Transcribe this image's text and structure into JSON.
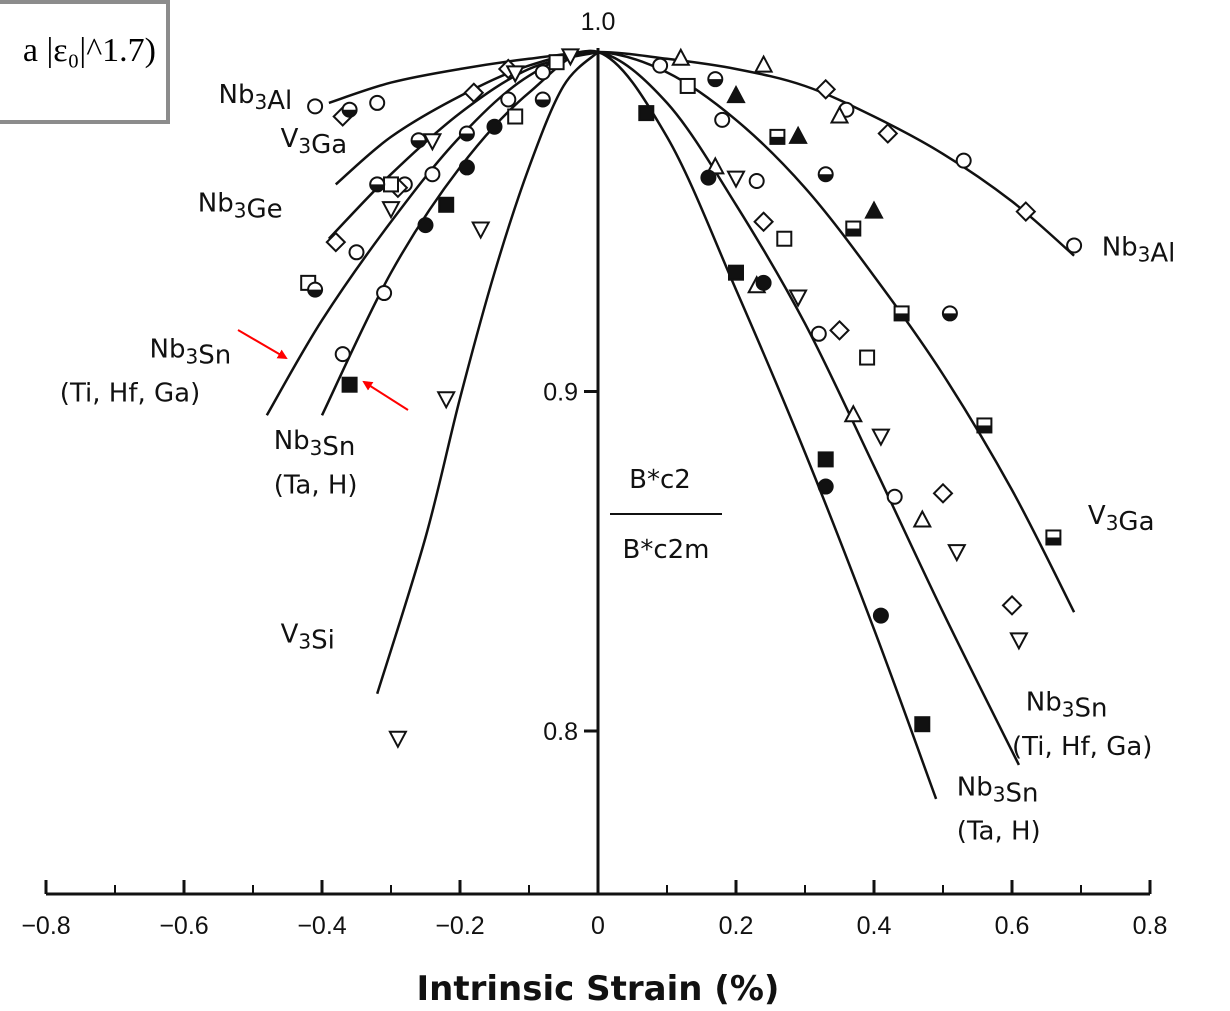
{
  "formula_fragment": "a |ε₀|^1.7)",
  "chart_data": {
    "type": "scatter",
    "xlabel": "Intrinsic Strain (%)",
    "ylabel": "B*c2 / B*c2m",
    "ylabel_num": "B*c2",
    "ylabel_den": "B*c2m",
    "xlim": [
      -0.8,
      0.8
    ],
    "ylim": [
      0.74,
      1.0
    ],
    "x_ticks": [
      -0.8,
      -0.6,
      -0.4,
      -0.2,
      0,
      0.2,
      0.4,
      0.6,
      0.8
    ],
    "x_tick_labels": [
      "−0.8",
      "−0.6",
      "−0.4",
      "−0.2",
      "0",
      "0.2",
      "0.4",
      "0.6",
      "0.8"
    ],
    "y_ticks": [
      0.8,
      0.9,
      1.0
    ],
    "y_tick_labels": [
      "0.8",
      "0.9",
      "1.0"
    ],
    "grid": false,
    "curves": [
      {
        "name": "Nb3Al",
        "x": [
          -0.39,
          -0.3,
          -0.2,
          -0.1,
          0,
          0.1,
          0.2,
          0.3,
          0.4,
          0.5,
          0.6,
          0.69
        ],
        "y": [
          0.985,
          0.991,
          0.995,
          0.998,
          1.0,
          0.998,
          0.995,
          0.99,
          0.981,
          0.97,
          0.956,
          0.94
        ]
      },
      {
        "name": "V3Ga",
        "x": [
          -0.38,
          -0.3,
          -0.2,
          -0.1,
          0,
          0.1,
          0.2,
          0.3,
          0.4,
          0.5,
          0.6,
          0.69
        ],
        "y": [
          0.961,
          0.975,
          0.987,
          0.996,
          1.0,
          0.994,
          0.98,
          0.96,
          0.934,
          0.905,
          0.871,
          0.835
        ]
      },
      {
        "name": "Nb3Ge",
        "x": [
          -0.39,
          -0.3,
          -0.2,
          -0.1,
          0
        ],
        "y": [
          0.945,
          0.964,
          0.982,
          0.995,
          1.0
        ]
      },
      {
        "name": "Nb3Sn (Ti, Hf, Ga)",
        "x": [
          -0.48,
          -0.4,
          -0.3,
          -0.2,
          -0.1,
          0,
          0.1,
          0.2,
          0.3,
          0.4,
          0.5,
          0.61
        ],
        "y": [
          0.893,
          0.921,
          0.95,
          0.975,
          0.993,
          1.0,
          0.985,
          0.955,
          0.92,
          0.878,
          0.835,
          0.79
        ]
      },
      {
        "name": "Nb3Sn (Ta, H)",
        "x": [
          -0.4,
          -0.3,
          -0.2,
          -0.1,
          0,
          0.1,
          0.2,
          0.3,
          0.4,
          0.49
        ],
        "y": [
          0.893,
          0.935,
          0.966,
          0.988,
          1.0,
          0.975,
          0.93,
          0.882,
          0.83,
          0.78
        ]
      },
      {
        "name": "V3Si",
        "x": [
          -0.32,
          -0.25,
          -0.2,
          -0.15,
          -0.1,
          -0.05,
          0
        ],
        "y": [
          0.811,
          0.857,
          0.898,
          0.935,
          0.966,
          0.99,
          1.0
        ]
      }
    ],
    "points": [
      {
        "m": "o",
        "x": -0.41,
        "y": 0.984
      },
      {
        "m": "o",
        "x": -0.32,
        "y": 0.985
      },
      {
        "m": "o",
        "x": -0.24,
        "y": 0.964
      },
      {
        "m": "o",
        "x": -0.28,
        "y": 0.961
      },
      {
        "m": "o",
        "x": -0.35,
        "y": 0.941
      },
      {
        "m": "o",
        "x": -0.13,
        "y": 0.986
      },
      {
        "m": "o",
        "x": -0.08,
        "y": 0.994
      },
      {
        "m": "o",
        "x": 0.09,
        "y": 0.996
      },
      {
        "m": "o",
        "x": 0.18,
        "y": 0.98
      },
      {
        "m": "o",
        "x": 0.36,
        "y": 0.983
      },
      {
        "m": "o",
        "x": 0.53,
        "y": 0.968
      },
      {
        "m": "o",
        "x": 0.69,
        "y": 0.943
      },
      {
        "m": "o",
        "x": 0.23,
        "y": 0.962
      },
      {
        "m": "o",
        "x": 0.32,
        "y": 0.917
      },
      {
        "m": "o",
        "x": 0.43,
        "y": 0.869
      },
      {
        "m": "d",
        "x": -0.37,
        "y": 0.981
      },
      {
        "m": "d",
        "x": -0.18,
        "y": 0.988
      },
      {
        "m": "d",
        "x": -0.13,
        "y": 0.995
      },
      {
        "m": "d",
        "x": 0.33,
        "y": 0.989
      },
      {
        "m": "d",
        "x": 0.42,
        "y": 0.976
      },
      {
        "m": "d",
        "x": 0.62,
        "y": 0.953
      },
      {
        "m": "d",
        "x": -0.38,
        "y": 0.944
      },
      {
        "m": "d",
        "x": -0.29,
        "y": 0.96
      },
      {
        "m": "d",
        "x": 0.24,
        "y": 0.95
      },
      {
        "m": "d",
        "x": 0.35,
        "y": 0.918
      },
      {
        "m": "d",
        "x": 0.5,
        "y": 0.87
      },
      {
        "m": "d",
        "x": 0.6,
        "y": 0.837
      },
      {
        "m": "^",
        "x": 0.24,
        "y": 0.996
      },
      {
        "m": "^",
        "x": 0.35,
        "y": 0.981
      },
      {
        "m": "^",
        "x": 0.12,
        "y": 0.998
      },
      {
        "m": "^",
        "x": 0.23,
        "y": 0.931
      },
      {
        "m": "^",
        "x": 0.37,
        "y": 0.893
      },
      {
        "m": "^",
        "x": 0.47,
        "y": 0.862
      },
      {
        "m": "^",
        "x": 0.17,
        "y": 0.966
      },
      {
        "m": "A",
        "x": 0.2,
        "y": 0.987
      },
      {
        "m": "A",
        "x": 0.29,
        "y": 0.975
      },
      {
        "m": "A",
        "x": 0.4,
        "y": 0.953
      },
      {
        "m": "v",
        "x": -0.04,
        "y": 0.999
      },
      {
        "m": "v",
        "x": -0.12,
        "y": 0.994
      },
      {
        "m": "v",
        "x": -0.24,
        "y": 0.974
      },
      {
        "m": "v",
        "x": -0.3,
        "y": 0.954
      },
      {
        "m": "v",
        "x": -0.17,
        "y": 0.948
      },
      {
        "m": "v",
        "x": -0.22,
        "y": 0.898
      },
      {
        "m": "v",
        "x": -0.29,
        "y": 0.798
      },
      {
        "m": "v",
        "x": 0.2,
        "y": 0.963
      },
      {
        "m": "v",
        "x": 0.29,
        "y": 0.928
      },
      {
        "m": "v",
        "x": 0.41,
        "y": 0.887
      },
      {
        "m": "v",
        "x": 0.52,
        "y": 0.853
      },
      {
        "m": "v",
        "x": 0.61,
        "y": 0.827
      },
      {
        "m": "s",
        "x": -0.42,
        "y": 0.932
      },
      {
        "m": "s",
        "x": -0.3,
        "y": 0.961
      },
      {
        "m": "s",
        "x": -0.12,
        "y": 0.981
      },
      {
        "m": "s",
        "x": -0.06,
        "y": 0.997
      },
      {
        "m": "s",
        "x": 0.13,
        "y": 0.99
      },
      {
        "m": "s",
        "x": 0.27,
        "y": 0.945
      },
      {
        "m": "s",
        "x": 0.39,
        "y": 0.91
      },
      {
        "m": "B",
        "x": 0.26,
        "y": 0.975
      },
      {
        "m": "B",
        "x": 0.37,
        "y": 0.948
      },
      {
        "m": "B",
        "x": 0.44,
        "y": 0.923
      },
      {
        "m": "B",
        "x": 0.56,
        "y": 0.89
      },
      {
        "m": "B",
        "x": 0.66,
        "y": 0.857
      },
      {
        "m": "H",
        "x": -0.36,
        "y": 0.983
      },
      {
        "m": "H",
        "x": -0.26,
        "y": 0.974
      },
      {
        "m": "H",
        "x": -0.19,
        "y": 0.976
      },
      {
        "m": "H",
        "x": -0.32,
        "y": 0.961
      },
      {
        "m": "H",
        "x": -0.41,
        "y": 0.93
      },
      {
        "m": "H",
        "x": -0.08,
        "y": 0.986
      },
      {
        "m": "H",
        "x": 0.17,
        "y": 0.992
      },
      {
        "m": "H",
        "x": 0.33,
        "y": 0.964
      },
      {
        "m": "H",
        "x": 0.51,
        "y": 0.923
      },
      {
        "m": "o",
        "x": -0.37,
        "y": 0.911
      },
      {
        "m": "o",
        "x": -0.31,
        "y": 0.929
      },
      {
        "m": "o",
        "x": -0.25,
        "y": 0.949
      },
      {
        "m": "o",
        "x": -0.19,
        "y": 0.966
      },
      {
        "m": "o",
        "x": -0.15,
        "y": 0.978
      },
      {
        "m": "o",
        "x": 0.16,
        "y": 0.963
      },
      {
        "m": "o",
        "x": 0.24,
        "y": 0.932
      },
      {
        "m": "o",
        "x": 0.33,
        "y": 0.872
      },
      {
        "m": "o",
        "x": 0.41,
        "y": 0.834
      },
      {
        "m": "S",
        "x": -0.36,
        "y": 0.902
      },
      {
        "m": "S",
        "x": -0.22,
        "y": 0.955
      },
      {
        "m": "S",
        "x": 0.07,
        "y": 0.982
      },
      {
        "m": "S",
        "x": 0.2,
        "y": 0.935
      },
      {
        "m": "S",
        "x": 0.33,
        "y": 0.88
      },
      {
        "m": "S",
        "x": 0.47,
        "y": 0.802
      }
    ],
    "labels": [
      {
        "id": "nb3al-left",
        "text": "Nb3Al",
        "x": -0.55,
        "y": 0.985,
        "curve": "Nb3Al",
        "anchor": "start"
      },
      {
        "id": "v3ga-left",
        "text": "V3Ga",
        "x": -0.46,
        "y": 0.972,
        "curve": "V3Ga",
        "anchor": "start"
      },
      {
        "id": "nb3ge-left",
        "text": "Nb3Ge",
        "x": -0.58,
        "y": 0.953,
        "curve": "Nb3Ge",
        "anchor": "start"
      },
      {
        "id": "nb3sn-tihfga-left",
        "text": "Nb3Sn",
        "x": -0.65,
        "y": 0.91,
        "curve": "Nb3Sn (Ti, Hf, Ga)",
        "anchor": "start"
      },
      {
        "id": "tihfga-left",
        "text": "(Ti, Hf, Ga)",
        "x": -0.78,
        "y": 0.897,
        "anchor": "start"
      },
      {
        "id": "nb3sn-tah-left",
        "text": "Nb3Sn",
        "x": -0.47,
        "y": 0.883,
        "curve": "Nb3Sn (Ta, H)",
        "anchor": "start"
      },
      {
        "id": "tah-left",
        "text": "(Ta, H)",
        "x": -0.47,
        "y": 0.87,
        "anchor": "start"
      },
      {
        "id": "v3si-left",
        "text": "V3Si",
        "x": -0.46,
        "y": 0.826,
        "curve": "V3Si",
        "anchor": "start"
      },
      {
        "id": "nb3al-right",
        "text": "Nb3Al",
        "x": 0.73,
        "y": 0.94,
        "curve": "Nb3Al",
        "anchor": "start"
      },
      {
        "id": "v3ga-right",
        "text": "V3Ga",
        "x": 0.71,
        "y": 0.861,
        "curve": "V3Ga",
        "anchor": "start"
      },
      {
        "id": "nb3sn-tihfga-right",
        "text": "Nb3Sn",
        "x": 0.62,
        "y": 0.806,
        "curve": "Nb3Sn (Ti, Hf, Ga)",
        "anchor": "start"
      },
      {
        "id": "tihfga-right",
        "text": "(Ti, Hf, Ga)",
        "x": 0.6,
        "y": 0.793,
        "anchor": "start"
      },
      {
        "id": "nb3sn-tah-right",
        "text": "Nb3Sn",
        "x": 0.52,
        "y": 0.781,
        "curve": "Nb3Sn (Ta, H)",
        "anchor": "start"
      },
      {
        "id": "tah-right",
        "text": "(Ta, H)",
        "x": 0.52,
        "y": 0.768,
        "anchor": "start"
      }
    ],
    "annotations": [
      {
        "type": "arrow",
        "color": "#ff0000",
        "points_to": "Nb3Sn (Ti, Hf, Ga) curve"
      },
      {
        "type": "arrow",
        "color": "#ff0000",
        "points_to": "Nb3Sn (Ta, H) data point"
      }
    ]
  }
}
